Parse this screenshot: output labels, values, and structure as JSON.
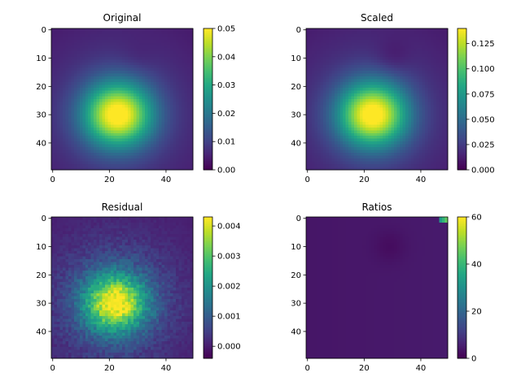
{
  "chart_data": [
    {
      "type": "heatmap",
      "title": "Original",
      "colormap": "viridis",
      "grid_size": [
        50,
        50
      ],
      "xticks": [
        "0",
        "20",
        "40"
      ],
      "yticks": [
        "0",
        "10",
        "20",
        "30",
        "40"
      ],
      "peak": [
        23,
        30
      ],
      "vmin": 0,
      "vmax": 0.05,
      "colorbar_ticks": [
        "0.00",
        "0.01",
        "0.02",
        "0.03",
        "0.04",
        "0.05"
      ],
      "grid": false
    },
    {
      "type": "heatmap",
      "title": "Scaled",
      "colormap": "viridis",
      "grid_size": [
        50,
        50
      ],
      "xticks": [
        "0",
        "20",
        "40"
      ],
      "yticks": [
        "0",
        "10",
        "20",
        "30",
        "40"
      ],
      "peak": [
        23,
        30
      ],
      "vmin": 0,
      "vmax": 0.14,
      "colorbar_ticks": [
        "0.000",
        "0.025",
        "0.050",
        "0.075",
        "0.100",
        "0.125"
      ],
      "grid": false
    },
    {
      "type": "heatmap",
      "title": "Residual",
      "colormap": "viridis",
      "grid_size": [
        50,
        50
      ],
      "xticks": [
        "0",
        "20",
        "40"
      ],
      "yticks": [
        "0",
        "10",
        "20",
        "30",
        "40"
      ],
      "peak": [
        22,
        30
      ],
      "vmin": -0.0004,
      "vmax": 0.0043,
      "colorbar_ticks": [
        "0.000",
        "0.001",
        "0.002",
        "0.003",
        "0.004"
      ],
      "grid": false
    },
    {
      "type": "heatmap",
      "title": "Ratios",
      "colormap": "viridis",
      "grid_size": [
        50,
        50
      ],
      "xticks": [
        "0",
        "20",
        "40"
      ],
      "yticks": [
        "0",
        "10",
        "20",
        "30",
        "40"
      ],
      "vmin": 0,
      "vmax": 60,
      "colorbar_ticks": [
        "0",
        "20",
        "40",
        "60"
      ],
      "grid": false
    }
  ]
}
